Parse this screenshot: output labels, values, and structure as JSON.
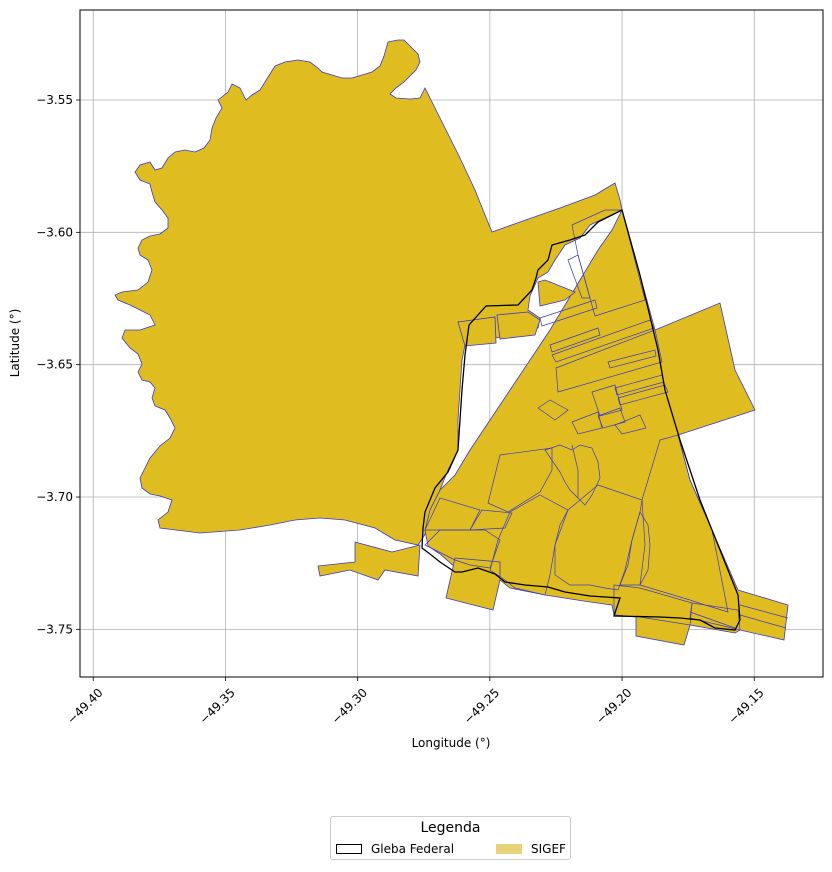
{
  "map": {
    "x_axis": {
      "label": "Longitude (°)",
      "range": [
        -49.405,
        -49.124
      ],
      "ticks": [
        -49.4,
        -49.35,
        -49.3,
        -49.25,
        -49.2,
        -49.15
      ],
      "tick_labels": [
        "−49.40",
        "−49.35",
        "−49.30",
        "−49.25",
        "−49.20",
        "−49.15"
      ]
    },
    "y_axis": {
      "label": "Latitude (°)",
      "range": [
        -3.768,
        -3.516
      ],
      "ticks": [
        -3.55,
        -3.6,
        -3.65,
        -3.7,
        -3.75
      ],
      "tick_labels": [
        "−3.55",
        "−3.60",
        "−3.65",
        "−3.70",
        "−3.75"
      ]
    },
    "grid": true,
    "layers": [
      {
        "name": "SIGEF",
        "fill": "#dfbc1f",
        "edge": "#3b3bc4"
      },
      {
        "name": "Gleba Federal",
        "fill": "none",
        "edge": "#000000"
      }
    ]
  },
  "legend": {
    "title": "Legenda",
    "placement": "bottom-center",
    "items": [
      {
        "label": "Gleba Federal",
        "color": "#000000"
      },
      {
        "label": "SIGEF",
        "color": "#e8d27a"
      }
    ]
  }
}
